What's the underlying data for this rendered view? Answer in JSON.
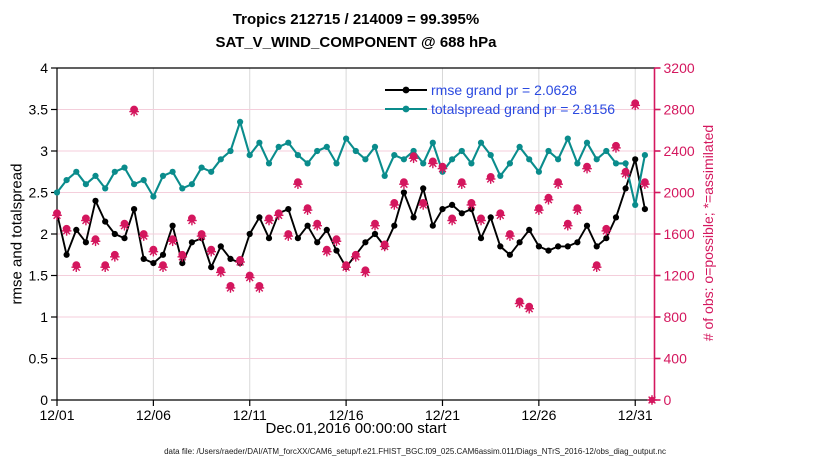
{
  "titles": {
    "line1": "Tropics 212715 / 214009 = 99.395%",
    "line2": "SAT_V_WIND_COMPONENT @ 688 hPa"
  },
  "legend": {
    "text_color": "#2b4ae0",
    "entries": [
      {
        "label": "rmse grand pr = 2.0628",
        "color": "#000000"
      },
      {
        "label": "totalspread grand pr = 2.8156",
        "color": "#0a8c8c"
      }
    ]
  },
  "footer": {
    "text": "data file: /Users/raeder/DAI/ATM_forcXX/CAM6_setup/f.e21.FHIST_BGC.f09_025.CAM6assim.011/Diags_NTrS_2016-12/obs_diag_output.nc"
  },
  "chart_data": {
    "type": "line",
    "title": "Tropics 212715 / 214009 = 99.395% — SAT_V_WIND_COMPONENT @ 688 hPa",
    "xlabel": "Dec.01,2016 00:00:00 start",
    "ylabel_left": "rmse and totalspread",
    "ylabel_right": "# of obs: o=possible; *=assimilated",
    "xlim_days": [
      0,
      31
    ],
    "x_tick_days": [
      0,
      5,
      10,
      15,
      20,
      25,
      30
    ],
    "x_tick_labels": [
      "12/01",
      "12/06",
      "12/11",
      "12/16",
      "12/21",
      "12/26",
      "12/31"
    ],
    "ylim_left": [
      0,
      4
    ],
    "yticks_left_values": [
      0,
      0.5,
      1,
      1.5,
      2,
      2.5,
      3,
      3.5,
      4
    ],
    "yticks_left_labels": [
      "0",
      "0.5",
      "1",
      "1.5",
      "2",
      "2.5",
      "3",
      "3.5",
      "4"
    ],
    "ylim_right": [
      0,
      3200
    ],
    "yticks_right_values": [
      0,
      400,
      800,
      1200,
      1600,
      2000,
      2400,
      2800,
      3200
    ],
    "yticks_right_labels": [
      "0",
      "400",
      "800",
      "1200",
      "1600",
      "2000",
      "2400",
      "2800",
      "3200"
    ],
    "x_start_day": 0,
    "x_step_days": 0.5,
    "grid": {
      "horizontal_color": "#f4cedb",
      "vertical_color": "#d8d8d8"
    },
    "series": [
      {
        "name": "rmse",
        "grand_pr": 2.0628,
        "color": "#000000",
        "values": [
          2.25,
          1.75,
          2.05,
          1.9,
          2.4,
          2.15,
          2.0,
          1.95,
          2.3,
          1.7,
          1.65,
          1.75,
          2.1,
          1.65,
          1.9,
          1.95,
          1.6,
          1.85,
          1.7,
          1.65,
          2.0,
          2.2,
          1.95,
          2.25,
          2.3,
          1.95,
          2.1,
          1.9,
          2.05,
          1.8,
          1.6,
          1.75,
          1.9,
          2.0,
          1.85,
          2.1,
          2.5,
          2.2,
          2.55,
          2.1,
          2.3,
          2.35,
          2.25,
          2.3,
          1.95,
          2.2,
          1.85,
          1.75,
          1.9,
          2.05,
          1.85,
          1.8,
          1.85,
          1.85,
          1.9,
          2.1,
          1.85,
          1.95,
          2.2,
          2.55,
          2.9,
          2.3
        ]
      },
      {
        "name": "totalspread",
        "grand_pr": 2.8156,
        "color": "#0a8c8c",
        "values": [
          2.5,
          2.65,
          2.75,
          2.6,
          2.7,
          2.55,
          2.75,
          2.8,
          2.6,
          2.65,
          2.45,
          2.7,
          2.75,
          2.55,
          2.6,
          2.8,
          2.75,
          2.9,
          3.0,
          3.35,
          2.95,
          3.1,
          2.85,
          3.05,
          3.1,
          2.95,
          2.85,
          3.0,
          3.05,
          2.85,
          3.15,
          3.0,
          2.9,
          3.05,
          2.7,
          2.95,
          2.9,
          3.0,
          2.85,
          3.1,
          2.75,
          2.9,
          3.0,
          2.85,
          3.1,
          2.95,
          2.7,
          2.85,
          3.05,
          2.9,
          2.75,
          3.0,
          2.9,
          3.15,
          2.85,
          3.1,
          2.9,
          3.0,
          2.85,
          2.85,
          2.35,
          2.95
        ]
      }
    ],
    "obs_counts": {
      "color": "#d4175e",
      "possible": [
        1800,
        1650,
        1300,
        1750,
        1550,
        1300,
        1400,
        1700,
        2800,
        1600,
        1450,
        1300,
        1550,
        1400,
        1750,
        1600,
        1450,
        1250,
        1100,
        1350,
        1200,
        1100,
        1750,
        1800,
        1600,
        2100,
        1850,
        1700,
        1450,
        1550,
        1300,
        1400,
        1250,
        1700,
        1500,
        1900,
        2100,
        2350,
        1900,
        2300,
        2250,
        1750,
        2100,
        1900,
        1750,
        2150,
        1800,
        1600,
        950,
        900,
        1850,
        1950,
        2100,
        1700,
        1850,
        2250,
        1300,
        1650,
        2450,
        2200,
        2860,
        2100
      ],
      "assimilated": [
        1780,
        1630,
        1280,
        1730,
        1530,
        1280,
        1380,
        1680,
        2780,
        1580,
        1430,
        1280,
        1530,
        1380,
        1730,
        1580,
        1430,
        1230,
        1080,
        1330,
        1180,
        1080,
        1730,
        1780,
        1580,
        2080,
        1830,
        1680,
        1430,
        1530,
        1280,
        1380,
        1230,
        1680,
        1480,
        1880,
        2080,
        2330,
        1880,
        2280,
        2230,
        1730,
        2080,
        1880,
        1730,
        2130,
        1780,
        1580,
        930,
        880,
        1830,
        1930,
        2080,
        1680,
        1830,
        2230,
        1280,
        1630,
        2430,
        2180,
        2840,
        2080
      ],
      "final_point": {
        "day": 31,
        "possible": 0,
        "assimilated": 0
      }
    }
  }
}
